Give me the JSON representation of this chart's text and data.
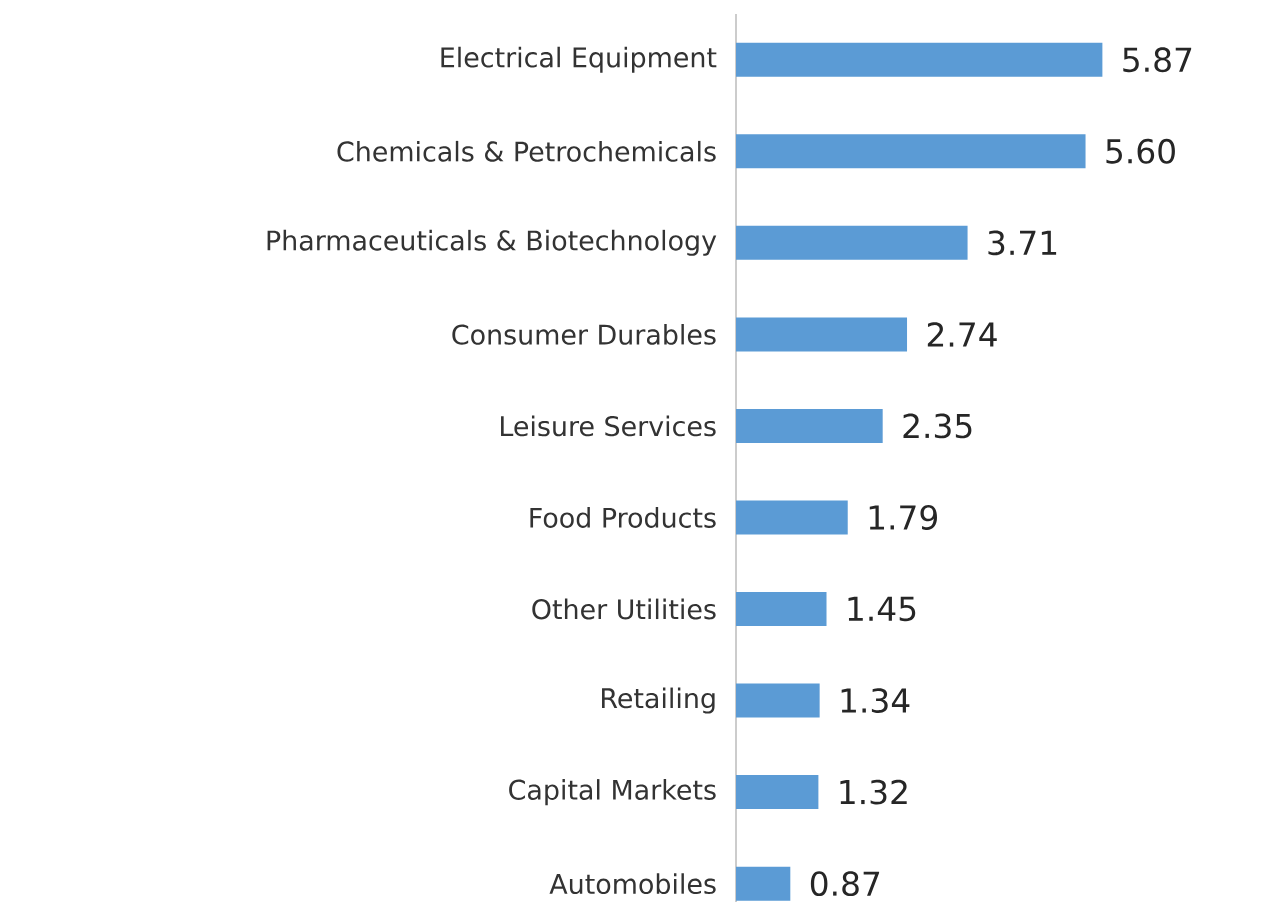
{
  "chart_data": {
    "type": "bar",
    "orientation": "horizontal",
    "categories": [
      "Electrical Equipment",
      "Chemicals & Petrochemicals",
      "Pharmaceuticals & Biotechnology",
      "Consumer Durables",
      "Leisure Services",
      "Food Products",
      "Other Utilities",
      "Retailing",
      "Capital Markets",
      "Automobiles"
    ],
    "values": [
      5.87,
      5.6,
      3.71,
      2.74,
      2.35,
      1.79,
      1.45,
      1.34,
      1.32,
      0.87
    ],
    "value_labels": [
      "5.87",
      "5.60",
      "3.71",
      "2.74",
      "2.35",
      "1.79",
      "1.45",
      "1.34",
      "1.32",
      "0.87"
    ],
    "color": "#5b9bd5",
    "tick_labels": "y"
  }
}
